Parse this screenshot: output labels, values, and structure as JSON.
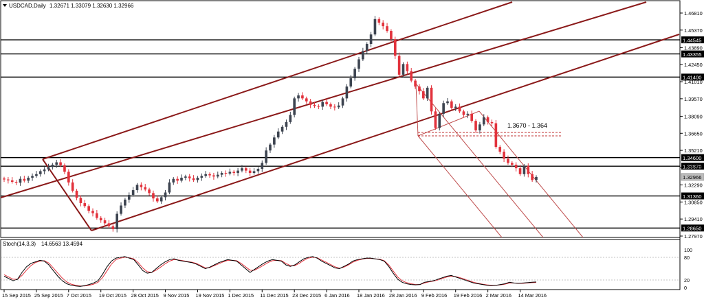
{
  "header": {
    "symbol_label": "USDCAD,Daily",
    "ohlc_values": "1.32671 1.33079 1.32630 1.32966"
  },
  "stoch_header": {
    "label": "Stoch(14,3,3)",
    "values": "14.6563 13.4594"
  },
  "annotation": {
    "text": "1.3670 - 1.364"
  },
  "colors": {
    "bull_candle": "#3d4450",
    "bear_candle": "#e2323c",
    "channel_line": "#8b1a1a",
    "stoch_main": "#000000",
    "stoch_signal": "#e2323c",
    "level_line": "#000000"
  },
  "chart_data": {
    "type": "candlestick",
    "price_axis_ticks": [
      "1.46810",
      "1.45370",
      "1.43890",
      "1.42450",
      "1.41010",
      "1.39570",
      "1.38090",
      "1.36650",
      "1.35210",
      "1.33770",
      "1.32290",
      "1.30850",
      "1.29410",
      "1.27970"
    ],
    "level_lines": [
      {
        "label": "1.44545",
        "value": 1.44545
      },
      {
        "label": "1.43355",
        "value": 1.43355
      },
      {
        "label": "1.41400",
        "value": 1.414
      },
      {
        "label": "1.34600",
        "value": 1.346
      },
      {
        "label": "1.33870",
        "value": 1.3387
      },
      {
        "label": "1.31360",
        "value": 1.3136
      },
      {
        "label": "1.28650",
        "value": 1.2865
      }
    ],
    "current_price": {
      "label": "1.32966",
      "value": 1.32966
    },
    "date_axis_labels": [
      "15 Sep 2015",
      "25 Sep 2015",
      "7 Oct 2015",
      "19 Oct 2015",
      "28 Oct 2015",
      "9 Nov 2015",
      "19 Nov 2015",
      "1 Dec 2015",
      "11 Dec 2015",
      "23 Dec 2015",
      "6 Jan 2016",
      "18 Jan 2016",
      "28 Jan 2016",
      "9 Feb 2016",
      "19 Feb 2016",
      "2 Mar 2016",
      "14 Mar 2016"
    ],
    "date_label_indices": [
      0,
      8,
      16,
      24,
      32,
      40,
      48,
      56,
      64,
      72,
      80,
      88,
      96,
      104,
      112,
      120,
      128
    ],
    "closes": [
      1.3275,
      1.3268,
      1.3255,
      1.3248,
      1.328,
      1.3265,
      1.329,
      1.3305,
      1.332,
      1.3345,
      1.336,
      1.338,
      1.34,
      1.342,
      1.3395,
      1.334,
      1.325,
      1.318,
      1.312,
      1.3075,
      1.305,
      1.301,
      1.299,
      1.295,
      1.293,
      1.2905,
      1.288,
      1.2855,
      1.2985,
      1.3055,
      1.3105,
      1.3145,
      1.3185,
      1.323,
      1.321,
      1.319,
      1.316,
      1.3115,
      1.309,
      1.3125,
      1.3165,
      1.325,
      1.328,
      1.3265,
      1.329,
      1.33,
      1.3285,
      1.327,
      1.329,
      1.3305,
      1.332,
      1.331,
      1.33,
      1.3315,
      1.333,
      1.3325,
      1.334,
      1.333,
      1.335,
      1.337,
      1.335,
      1.333,
      1.3345,
      1.3365,
      1.3415,
      1.352,
      1.357,
      1.363,
      1.368,
      1.372,
      1.376,
      1.382,
      1.396,
      1.3985,
      1.396,
      1.3935,
      1.3905,
      1.3895,
      1.389,
      1.393,
      1.391,
      1.389,
      1.3885,
      1.39,
      1.396,
      1.406,
      1.413,
      1.421,
      1.429,
      1.436,
      1.442,
      1.45,
      1.463,
      1.46,
      1.457,
      1.453,
      1.446,
      1.432,
      1.416,
      1.425,
      1.419,
      1.411,
      1.406,
      1.402,
      1.396,
      1.405,
      1.385,
      1.371,
      1.383,
      1.392,
      1.3935,
      1.388,
      1.389,
      1.385,
      1.382,
      1.383,
      1.377,
      1.369,
      1.374,
      1.38,
      1.376,
      1.375,
      1.355,
      1.351,
      1.345,
      1.3415,
      1.34,
      1.337,
      1.332,
      1.339,
      1.332,
      1.327,
      1.3296
    ],
    "stoch_main": [
      30,
      24,
      18,
      22,
      40,
      55,
      64,
      68,
      72,
      70,
      60,
      45,
      30,
      18,
      10,
      6,
      4,
      3,
      5,
      8,
      12,
      18,
      35,
      55,
      70,
      78,
      80,
      82,
      78,
      74,
      60,
      45,
      38,
      40,
      50,
      60,
      68,
      74,
      76,
      72,
      70,
      68,
      66,
      62,
      56,
      50,
      54,
      60,
      66,
      70,
      74,
      72,
      70,
      60,
      50,
      40,
      48,
      56,
      64,
      70,
      74,
      72,
      70,
      60,
      56,
      60,
      68,
      76,
      80,
      82,
      78,
      70,
      64,
      58,
      52,
      50,
      56,
      62,
      70,
      74,
      76,
      78,
      78,
      76,
      74,
      70,
      56,
      38,
      22,
      14,
      10,
      8,
      7,
      8,
      14,
      16,
      18,
      22,
      26,
      30,
      32,
      28,
      24,
      20,
      16,
      12,
      10,
      8,
      6,
      5,
      6,
      8,
      10,
      14,
      12,
      11,
      12,
      13,
      14,
      14.66
    ],
    "stoch_signal": [
      34,
      28,
      22,
      22,
      32,
      46,
      58,
      66,
      70,
      71,
      65,
      52,
      38,
      25,
      15,
      9,
      6,
      4,
      4,
      6,
      9,
      14,
      26,
      44,
      62,
      74,
      78,
      80,
      79,
      76,
      66,
      52,
      42,
      40,
      46,
      54,
      63,
      70,
      74,
      73,
      71,
      69,
      67,
      64,
      58,
      52,
      53,
      58,
      63,
      68,
      72,
      72,
      71,
      64,
      55,
      46,
      46,
      52,
      59,
      66,
      71,
      72,
      71,
      64,
      58,
      58,
      64,
      72,
      78,
      80,
      79,
      73,
      67,
      61,
      55,
      51,
      54,
      60,
      67,
      72,
      75,
      77,
      77,
      76,
      75,
      71,
      60,
      44,
      28,
      18,
      13,
      10,
      8,
      8,
      12,
      15,
      17,
      20,
      24,
      28,
      30,
      29,
      26,
      22,
      18,
      14,
      11,
      9,
      7,
      6,
      6,
      7,
      9,
      12,
      12,
      11,
      11,
      12,
      13,
      13.46
    ],
    "stoch_levels": [
      {
        "label": "100",
        "value": 100
      },
      {
        "label": "80",
        "value": 80
      },
      {
        "label": "20",
        "value": 20
      },
      {
        "label": "0",
        "value": 0
      }
    ],
    "price_range": [
      1.2797,
      1.4681
    ],
    "stoch_range": [
      0,
      100
    ]
  }
}
